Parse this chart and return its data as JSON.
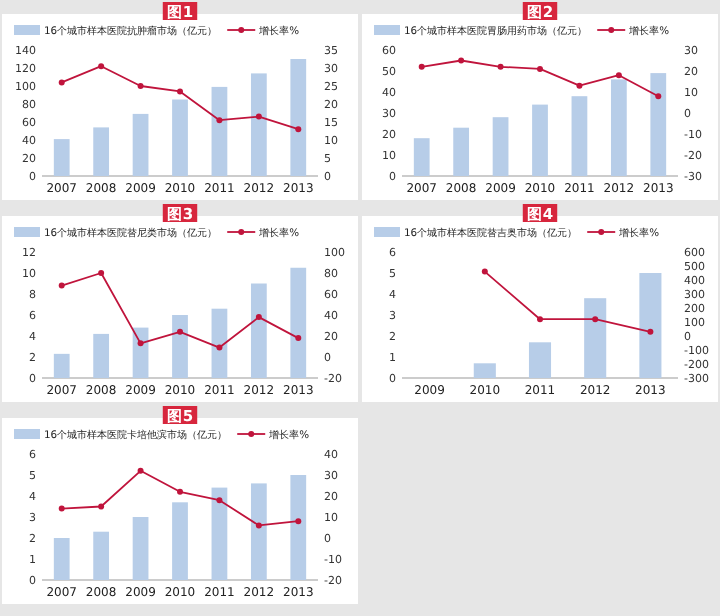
{
  "chart_data": [
    {
      "type": "bar",
      "title": "图1",
      "categories": [
        "2007",
        "2008",
        "2009",
        "2010",
        "2011",
        "2012",
        "2013"
      ],
      "ylim": [
        0,
        140
      ],
      "yticks": [
        0,
        20,
        40,
        60,
        80,
        100,
        120,
        140
      ],
      "y2lim": [
        0,
        35
      ],
      "y2ticks": [
        0,
        5,
        10,
        15,
        20,
        25,
        30,
        35
      ],
      "legend": "top",
      "marker": "circle",
      "series": [
        {
          "name": "16个城市样本医院抗肿瘤市场（亿元）",
          "color": "#b7cde8",
          "values": [
            41,
            54,
            69,
            85,
            99,
            114,
            130
          ]
        },
        {
          "name": "增长率%",
          "type": "line",
          "axis": "y2",
          "color": "#c0143c",
          "values": [
            26,
            30.5,
            25,
            23.5,
            15.5,
            16.5,
            13
          ]
        }
      ]
    },
    {
      "type": "bar",
      "title": "图2",
      "categories": [
        "2007",
        "2008",
        "2009",
        "2010",
        "2011",
        "2012",
        "2013"
      ],
      "ylim": [
        0,
        60
      ],
      "yticks": [
        0,
        10,
        20,
        30,
        40,
        50,
        60
      ],
      "y2lim": [
        -30,
        30
      ],
      "y2ticks": [
        -30,
        -20,
        -10,
        0,
        10,
        20,
        30
      ],
      "legend": "top",
      "marker": "circle",
      "series": [
        {
          "name": "16个城市样本医院胃肠用药市场（亿元）",
          "color": "#b7cde8",
          "values": [
            18,
            23,
            28,
            34,
            38,
            46,
            49
          ]
        },
        {
          "name": "增长率%",
          "type": "line",
          "axis": "y2",
          "color": "#c0143c",
          "values": [
            22,
            25,
            22,
            21,
            13,
            18,
            8
          ]
        }
      ]
    },
    {
      "type": "bar",
      "title": "图3",
      "categories": [
        "2007",
        "2008",
        "2009",
        "2010",
        "2011",
        "2012",
        "2013"
      ],
      "ylim": [
        0,
        12
      ],
      "yticks": [
        0,
        2,
        4,
        6,
        8,
        10,
        12
      ],
      "y2lim": [
        -20,
        100
      ],
      "y2ticks": [
        -20,
        0,
        20,
        40,
        60,
        80,
        100
      ],
      "legend": "top",
      "marker": "circle",
      "series": [
        {
          "name": "16个城市样本医院替尼类市场（亿元）",
          "color": "#b7cde8",
          "values": [
            2.3,
            4.2,
            4.8,
            6,
            6.6,
            9,
            10.5
          ]
        },
        {
          "name": "增长率%",
          "type": "line",
          "axis": "y2",
          "color": "#c0143c",
          "values": [
            68,
            80,
            13,
            24,
            9,
            38,
            18
          ]
        }
      ]
    },
    {
      "type": "bar",
      "title": "图4",
      "categories": [
        "2009",
        "2010",
        "2011",
        "2012",
        "2013"
      ],
      "ylim": [
        0,
        6
      ],
      "yticks": [
        0,
        1,
        2,
        3,
        4,
        5,
        6
      ],
      "y2lim": [
        -300,
        600
      ],
      "y2ticks": [
        -300,
        -200,
        -100,
        0,
        100,
        200,
        300,
        400,
        500,
        600
      ],
      "legend": "top",
      "marker": "circle",
      "series": [
        {
          "name": "16个城市样本医院替吉奥市场（亿元）",
          "color": "#b7cde8",
          "values": [
            null,
            0.7,
            1.7,
            3.8,
            5.0
          ]
        },
        {
          "name": "增长率%",
          "type": "line",
          "axis": "y2",
          "color": "#c0143c",
          "values": [
            null,
            460,
            120,
            120,
            30
          ]
        }
      ]
    },
    {
      "type": "bar",
      "title": "图5",
      "categories": [
        "2007",
        "2008",
        "2009",
        "2010",
        "2011",
        "2012",
        "2013"
      ],
      "ylim": [
        0,
        6
      ],
      "yticks": [
        0,
        1,
        2,
        3,
        4,
        5,
        6
      ],
      "y2lim": [
        -20,
        40
      ],
      "y2ticks": [
        -20,
        -10,
        0,
        10,
        20,
        30,
        40
      ],
      "legend": "top",
      "marker": "circle",
      "series": [
        {
          "name": "16个城市样本医院卡培他滨市场（亿元）",
          "color": "#b7cde8",
          "values": [
            2.0,
            2.3,
            3.0,
            3.7,
            4.4,
            4.6,
            5.0
          ]
        },
        {
          "name": "增长率%",
          "type": "line",
          "axis": "y2",
          "color": "#c0143c",
          "values": [
            14,
            15,
            32,
            22,
            18,
            6,
            8
          ]
        }
      ]
    }
  ]
}
